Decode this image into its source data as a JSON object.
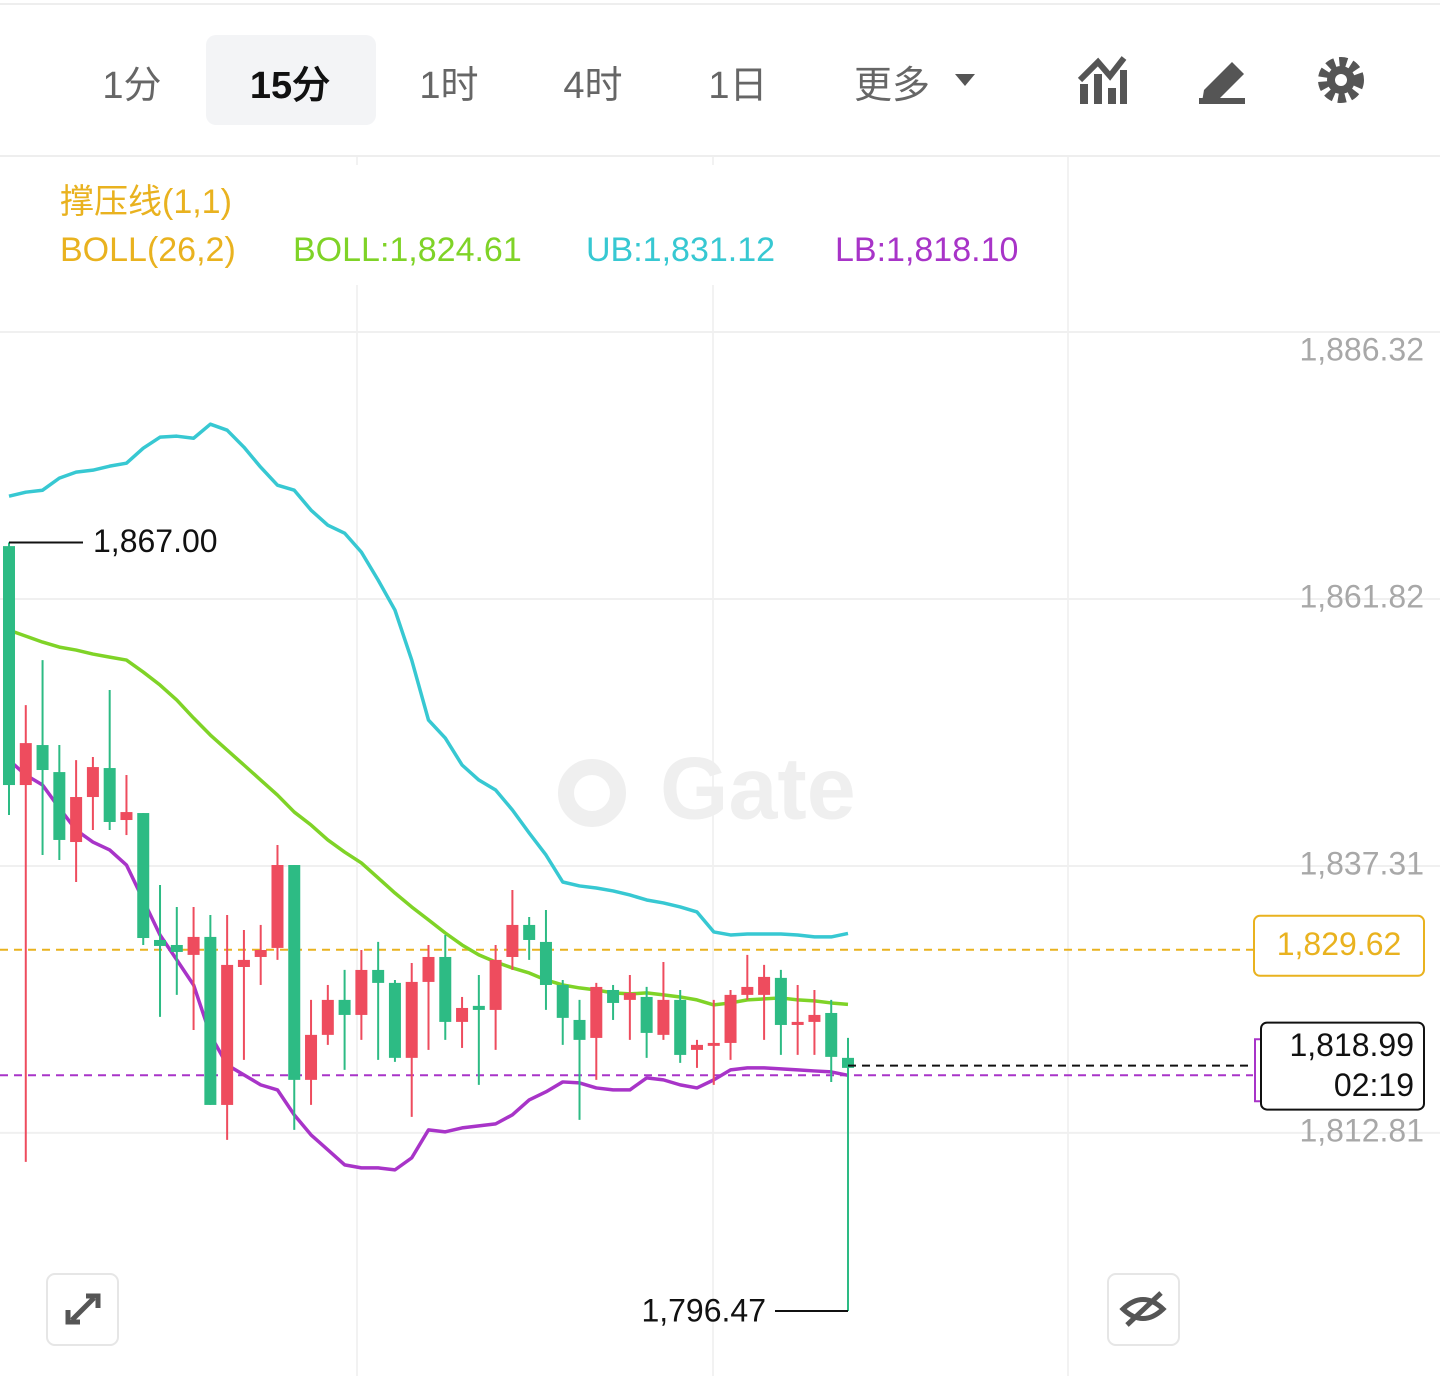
{
  "toolbar": {
    "tabs": [
      "1分",
      "15分",
      "1时",
      "4时",
      "1日",
      "更多"
    ],
    "active": 1
  },
  "chart_data": {
    "type": "candlestick",
    "indicators": [
      {
        "text": "撑压线(1,1)",
        "color": "#e9b21f"
      },
      {
        "text": "BOLL(26,2)",
        "color": "#e9b21f"
      }
    ],
    "watermark": "Gate",
    "ylim": [
      1790.5,
      1888.8
    ],
    "yticks": [
      {
        "value": 1886.32,
        "label": "1,886.32"
      },
      {
        "value": 1861.82,
        "label": "1,861.82"
      },
      {
        "value": 1837.31,
        "label": "1,837.31"
      },
      {
        "value": 1812.81,
        "label": "1,812.81"
      }
    ],
    "grid": true,
    "up_color": "#2dbb84",
    "down_color": "#ee4c5e",
    "ohlc": [
      [
        1844.74,
        1867.0,
        1841.99,
        1866.67
      ],
      [
        1848.59,
        1852.08,
        1810.15,
        1844.74
      ],
      [
        1846.12,
        1856.21,
        1838.32,
        1848.41
      ],
      [
        1839.7,
        1848.41,
        1837.86,
        1845.93
      ],
      [
        1843.64,
        1847.03,
        1835.84,
        1839.51
      ],
      [
        1846.39,
        1847.31,
        1840.61,
        1843.64
      ],
      [
        1841.35,
        1853.46,
        1840.61,
        1846.3
      ],
      [
        1842.26,
        1845.66,
        1840.15,
        1841.53
      ],
      [
        1830.7,
        1842.17,
        1830.06,
        1842.17
      ],
      [
        1829.97,
        1835.57,
        1823.46,
        1830.52
      ],
      [
        1829.42,
        1833.55,
        1825.48,
        1830.06
      ],
      [
        1830.8,
        1833.55,
        1822.26,
        1829.15
      ],
      [
        1815.38,
        1832.81,
        1815.38,
        1830.8
      ],
      [
        1828.23,
        1832.81,
        1812.17,
        1815.38
      ],
      [
        1828.69,
        1831.44,
        1819.51,
        1828.04
      ],
      [
        1829.6,
        1831.9,
        1826.39,
        1828.96
      ],
      [
        1837.4,
        1839.24,
        1828.69,
        1829.79
      ],
      [
        1817.68,
        1837.4,
        1813.09,
        1837.4
      ],
      [
        1821.81,
        1825.02,
        1815.38,
        1817.68
      ],
      [
        1825.02,
        1826.39,
        1820.89,
        1821.81
      ],
      [
        1823.64,
        1827.77,
        1818.6,
        1825.02
      ],
      [
        1827.77,
        1829.6,
        1821.35,
        1823.64
      ],
      [
        1826.58,
        1830.34,
        1819.51,
        1827.77
      ],
      [
        1819.7,
        1826.85,
        1819.33,
        1826.58
      ],
      [
        1826.67,
        1828.41,
        1814.28,
        1819.7
      ],
      [
        1828.96,
        1830.06,
        1820.43,
        1826.67
      ],
      [
        1823.0,
        1830.98,
        1821.35,
        1828.96
      ],
      [
        1824.28,
        1825.29,
        1820.61,
        1823.0
      ],
      [
        1824.1,
        1827.31,
        1817.22,
        1824.47
      ],
      [
        1828.69,
        1830.06,
        1820.43,
        1824.1
      ],
      [
        1831.9,
        1835.11,
        1827.77,
        1828.96
      ],
      [
        1830.52,
        1832.63,
        1828.69,
        1831.9
      ],
      [
        1826.39,
        1833.27,
        1824.1,
        1830.34
      ],
      [
        1823.37,
        1826.85,
        1820.89,
        1826.39
      ],
      [
        1821.35,
        1825.02,
        1814.01,
        1823.18
      ],
      [
        1826.21,
        1826.58,
        1817.68,
        1821.53
      ],
      [
        1824.74,
        1826.39,
        1823.18,
        1825.93
      ],
      [
        1825.66,
        1827.31,
        1821.35,
        1825.02
      ],
      [
        1821.99,
        1826.21,
        1819.7,
        1825.29
      ],
      [
        1825.02,
        1828.5,
        1821.35,
        1821.81
      ],
      [
        1819.97,
        1825.93,
        1819.24,
        1825.02
      ],
      [
        1820.89,
        1821.35,
        1818.78,
        1820.43
      ],
      [
        1821.07,
        1825.02,
        1817.22,
        1820.8
      ],
      [
        1825.48,
        1825.93,
        1819.51,
        1821.07
      ],
      [
        1826.21,
        1829.15,
        1825.02,
        1825.48
      ],
      [
        1827.13,
        1828.23,
        1821.35,
        1825.48
      ],
      [
        1822.72,
        1827.77,
        1819.97,
        1827.04
      ],
      [
        1823.0,
        1826.39,
        1819.97,
        1822.72
      ],
      [
        1823.64,
        1825.93,
        1819.97,
        1823.0
      ],
      [
        1819.79,
        1825.02,
        1817.49,
        1823.82
      ],
      [
        1818.78,
        1821.53,
        1796.47,
        1819.7
      ]
    ],
    "series": [
      {
        "name": "BOLL",
        "legend": "BOLL:1,824.61",
        "color": "#7fd327",
        "values": [
          1858.96,
          1858.41,
          1857.86,
          1857.4,
          1857.13,
          1856.76,
          1856.48,
          1856.21,
          1855.11,
          1853.92,
          1852.54,
          1850.89,
          1849.33,
          1847.95,
          1846.58,
          1845.2,
          1843.82,
          1842.26,
          1841.07,
          1839.7,
          1838.59,
          1837.59,
          1836.21,
          1834.83,
          1833.55,
          1832.36,
          1831.16,
          1830.06,
          1829.15,
          1828.5,
          1827.95,
          1827.49,
          1826.85,
          1826.39,
          1826.12,
          1825.93,
          1825.66,
          1825.57,
          1825.66,
          1825.48,
          1825.29,
          1825.02,
          1824.56,
          1824.74,
          1825.02,
          1825.11,
          1825.2,
          1825.02,
          1824.93,
          1824.74,
          1824.61
        ]
      },
      {
        "name": "UB",
        "legend": "UB:1,831.12",
        "color": "#37c8d2",
        "values": [
          1871.25,
          1871.62,
          1871.8,
          1872.91,
          1873.46,
          1873.64,
          1874.01,
          1874.28,
          1875.66,
          1876.67,
          1876.76,
          1876.57,
          1877.86,
          1877.31,
          1875.75,
          1873.91,
          1872.26,
          1871.8,
          1869.97,
          1868.59,
          1867.86,
          1866.12,
          1863.55,
          1860.8,
          1856.21,
          1850.7,
          1849.05,
          1846.58,
          1845.2,
          1844.28,
          1842.45,
          1840.34,
          1838.32,
          1835.84,
          1835.48,
          1835.29,
          1835.02,
          1834.65,
          1834.19,
          1833.92,
          1833.55,
          1833.09,
          1831.26,
          1830.98,
          1831.07,
          1831.07,
          1831.07,
          1830.98,
          1830.8,
          1830.8,
          1831.12
        ]
      },
      {
        "name": "LB",
        "legend": "LB:1,818.10",
        "color": "#a834c8",
        "values": [
          1847.03,
          1845.66,
          1844.74,
          1842.63,
          1840.61,
          1839.51,
          1838.78,
          1837.4,
          1834.19,
          1830.98,
          1828.69,
          1826.39,
          1821.81,
          1819.05,
          1818.14,
          1817.22,
          1816.76,
          1814.47,
          1812.63,
          1811.26,
          1809.88,
          1809.6,
          1809.6,
          1809.42,
          1810.52,
          1813.09,
          1812.91,
          1813.27,
          1813.46,
          1813.64,
          1814.47,
          1815.84,
          1816.58,
          1817.49,
          1817.4,
          1816.94,
          1816.76,
          1816.76,
          1817.86,
          1817.68,
          1817.22,
          1816.94,
          1817.68,
          1818.6,
          1818.78,
          1818.78,
          1818.69,
          1818.6,
          1818.5,
          1818.41,
          1818.1
        ]
      }
    ],
    "high_label": "1,867.00",
    "low_label": "1,796.47",
    "last_price": {
      "value": 1818.99,
      "label": "1,818.99"
    },
    "countdown": "02:19",
    "support_line": {
      "value": 1829.62,
      "label": "1,829.62",
      "color": "#e9b21f"
    }
  }
}
